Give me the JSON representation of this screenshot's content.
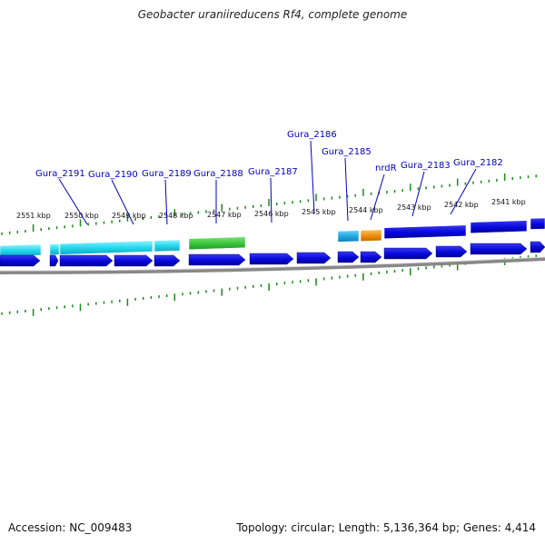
{
  "title": "Geobacter uraniireducens Rf4, complete genome",
  "footer": {
    "accession": "Accession: NC_009483",
    "summary": "Topology: circular; Length: 5,136,364 bp; Genes: 4,414"
  },
  "scale_labels": [
    "2551 kbp",
    "2550 kbp",
    "2549 kbp",
    "2548 kbp",
    "2547 kbp",
    "2546 kbp",
    "2545 kbp",
    "2544 kbp",
    "2543 kbp",
    "2542 kbp",
    "2541 kbp"
  ],
  "gene_labels": [
    "Gura_2191",
    "Gura_2190",
    "Gura_2189",
    "Gura_2188",
    "Gura_2187",
    "Gura_2186",
    "Gura_2185",
    "nrdR",
    "Gura_2183",
    "Gura_2182"
  ],
  "colors": {
    "cds": "#0a0adc",
    "cyan_feature": "#22d8ee",
    "green_feature": "#3cc83c",
    "orange_feature": "#f0900c",
    "light_blue_feature": "#20a8e0",
    "tick": "#1a8a1a",
    "backbone": "#888888",
    "label": "#0000c8"
  }
}
